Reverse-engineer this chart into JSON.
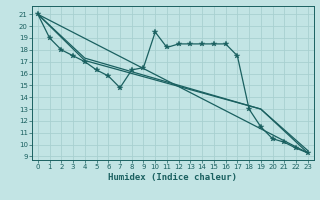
{
  "xlabel": "Humidex (Indice chaleur)",
  "xlim": [
    -0.5,
    23.5
  ],
  "ylim": [
    8.7,
    21.7
  ],
  "yticks": [
    9,
    10,
    11,
    12,
    13,
    14,
    15,
    16,
    17,
    18,
    19,
    20,
    21
  ],
  "xticks": [
    0,
    1,
    2,
    3,
    4,
    5,
    6,
    7,
    8,
    9,
    10,
    11,
    12,
    13,
    14,
    15,
    16,
    17,
    18,
    19,
    20,
    21,
    22,
    23
  ],
  "bg_color": "#c2e4e4",
  "grid_color": "#a8d0d0",
  "line_color": "#1a6060",
  "line1_x": [
    0,
    1,
    2,
    3,
    4,
    5,
    6,
    7,
    8,
    9,
    10,
    11,
    12,
    13,
    14,
    15,
    16,
    17,
    18,
    19,
    20,
    21,
    22,
    23
  ],
  "line1_y": [
    21,
    19,
    18,
    17.5,
    17,
    16.3,
    15.8,
    14.8,
    16.3,
    16.5,
    19.5,
    18.2,
    18.5,
    18.5,
    18.5,
    18.5,
    18.5,
    17.5,
    13,
    11.5,
    10.5,
    10.2,
    9.7,
    9.3
  ],
  "line2_x": [
    0,
    23
  ],
  "line2_y": [
    21,
    9.3
  ],
  "line3_x": [
    0,
    4,
    19,
    23
  ],
  "line3_y": [
    21,
    17.3,
    13,
    9.3
  ],
  "line4_x": [
    0,
    4,
    19,
    23
  ],
  "line4_y": [
    21,
    17.1,
    13,
    9.5
  ]
}
